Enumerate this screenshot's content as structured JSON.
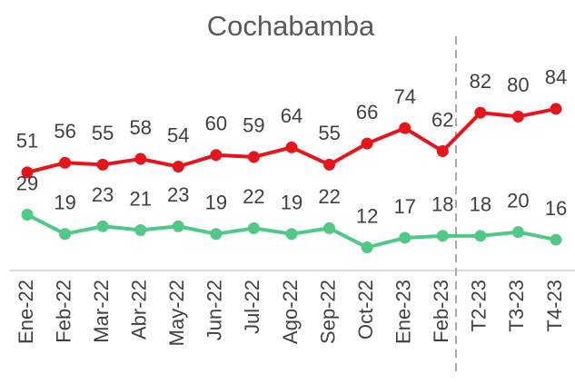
{
  "chart_data": {
    "type": "line",
    "title": "Cochabamba",
    "categories": [
      "Ene-22",
      "Feb-22",
      "Mar-22",
      "Abr-22",
      "May-22",
      "Jun-22",
      "Jul-22",
      "Ago-22",
      "Sep-22",
      "Oct-22",
      "Ene-23",
      "Feb-23",
      "T2-23",
      "T3-23",
      "T4-23"
    ],
    "series": [
      {
        "color": "#e8141b",
        "values": [
          51,
          56,
          55,
          58,
          54,
          60,
          59,
          64,
          55,
          66,
          74,
          62,
          82,
          80,
          84
        ]
      },
      {
        "color": "#4fc985",
        "values": [
          29,
          19,
          23,
          21,
          23,
          19,
          22,
          19,
          22,
          12,
          17,
          18,
          18,
          20,
          16
        ]
      }
    ],
    "ylim": [
      0,
      100
    ]
  }
}
